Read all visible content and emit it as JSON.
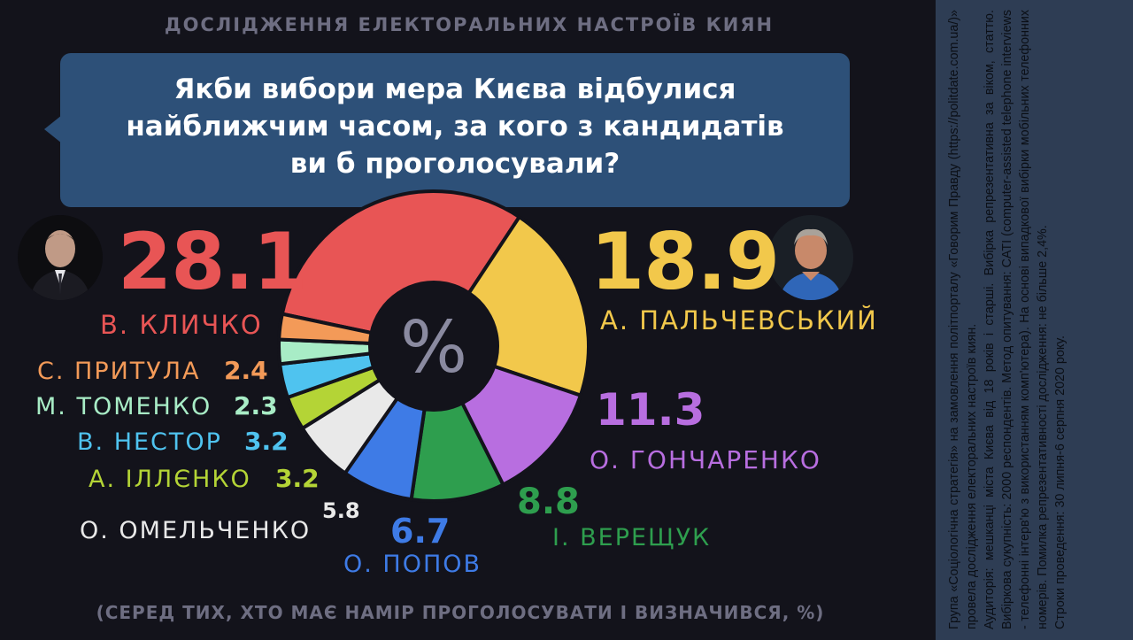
{
  "header": {
    "title": "ДОСЛІДЖЕННЯ ЕЛЕКТОРАЛЬНИХ НАСТРОЇВ КИЯН"
  },
  "question": {
    "line1": "Якби вибори мера Києва відбулися",
    "line2": "найближчим часом, за кого з кандидатів",
    "line3": "ви б проголосували?"
  },
  "chart_data": {
    "type": "pie",
    "center_label": "%",
    "slices": [
      {
        "label": "В. КЛИЧКО",
        "value_text": "28.1",
        "value": 28.1,
        "color": "#e85555"
      },
      {
        "label": "А. ПАЛЬЧЕВСЬКИЙ",
        "value_text": "18.9",
        "value": 18.9,
        "color": "#f2c84b"
      },
      {
        "label": "О. ГОНЧАРЕНКО",
        "value_text": "11.3",
        "value": 11.3,
        "color": "#b86ee0"
      },
      {
        "label": "І. ВЕРЕЩУК",
        "value_text": "8.8",
        "value": 8.8,
        "color": "#2e9e4e"
      },
      {
        "label": "О. ПОПОВ",
        "value_text": "6.7",
        "value": 6.7,
        "color": "#3e7be6"
      },
      {
        "label": "О. ОМЕЛЬЧЕНКО",
        "value_text": "5.8",
        "value": 5.8,
        "color": "#e9e9e9"
      },
      {
        "label": "А. ІЛЛЄНКО",
        "value_text": "3.2",
        "value": 3.2,
        "color": "#b4d436"
      },
      {
        "label": "В. НЕСТОР",
        "value_text": "3.2",
        "value": 3.2,
        "color": "#4fc3ef"
      },
      {
        "label": "М. ТОМЕНКО",
        "value_text": "2.3",
        "value": 2.3,
        "color": "#a8ecc6"
      },
      {
        "label": "С. ПРИТУЛА",
        "value_text": "2.4",
        "value": 2.4,
        "color": "#f39a58"
      }
    ]
  },
  "value_colors": {
    "klychko": "#e85555",
    "palchevsky": "#f2c84b",
    "honcharenko": "#b86ee0",
    "vereshchuk": "#2e9e4e",
    "popov": "#3e7be6",
    "omelchenko": "#e9e9e9",
    "illienko": "#b4d436",
    "nestor": "#4fc3ef",
    "tomenko": "#a8ecc6",
    "prytula": "#f39a58"
  },
  "footer": {
    "note": "(СЕРЕД ТИХ, ХТО МАЄ НАМІР ПРОГОЛОСУВАТИ І ВИЗНАЧИВСЯ, %)"
  },
  "methodology": {
    "p1": "Група «Соціологічна стратегія» на замовлення політпорталу «Говорим Правду (https://politdate.com.ua/)» провела дослідження електоральних настроїв киян.",
    "p2": "Аудиторія: мешканці міста Києва від 18 років і старші. Вибірка репрезентативна за віком, статтю. Вибіркова сукупність: 2000 респондентів. Метод опитування: CATI (computer-assisted telephone interviews - телефонні інтерв'ю з використанням комп'ютера). На основі випадкової вибірки мобільних телефонних номерів. Помилка репрезентативності дослідження: не більше 2,4%.",
    "p3": "Строки проведення: 30 липня-6 серпня 2020 року."
  }
}
